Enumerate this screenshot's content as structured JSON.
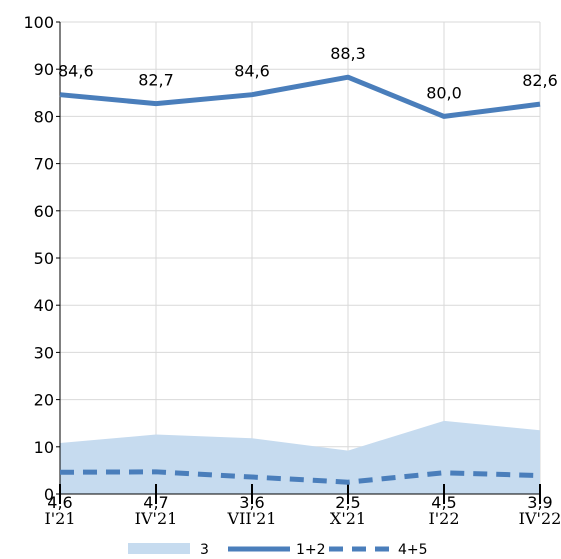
{
  "chart_data": {
    "type": "line",
    "categories": [
      "I'21",
      "IV'21",
      "VII'21",
      "X'21",
      "I'22",
      "IV'22"
    ],
    "ylim": [
      0,
      100
    ],
    "y_ticks": [
      0,
      10,
      20,
      30,
      40,
      50,
      60,
      70,
      80,
      90,
      100
    ],
    "grid": true,
    "legend_position": "bottom",
    "series": [
      {
        "name": "3",
        "render": "area",
        "color": "#c6dbef",
        "values": [
          10.8,
          12.6,
          11.8,
          9.2,
          15.5,
          13.5
        ]
      },
      {
        "name": "1+2",
        "render": "line",
        "color": "#4a7ebb",
        "values": [
          84.6,
          82.7,
          84.6,
          88.3,
          80.0,
          82.6
        ],
        "labels": [
          "84,6",
          "82,7",
          "84,6",
          "88,3",
          "80,0",
          "82,6"
        ]
      },
      {
        "name": "4+5",
        "render": "dashed",
        "color": "#4a7ebb",
        "values": [
          4.6,
          4.7,
          3.6,
          2.5,
          4.5,
          3.9
        ],
        "labels": [
          "4,6",
          "4,7",
          "3,6",
          "2,5",
          "4,5",
          "3,9"
        ]
      }
    ]
  }
}
